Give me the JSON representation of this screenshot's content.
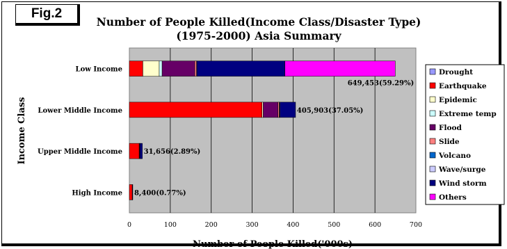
{
  "fig_label": "Fig.2",
  "chart_data": {
    "type": "bar",
    "orientation": "horizontal",
    "stacked": true,
    "title": "Number of People Killed(Income Class/Disaster Type)",
    "subtitle": "(1975-2000) Asia Summary",
    "xlabel": "Number of People Killed('000s)",
    "ylabel": "Income Class",
    "xlim": [
      0,
      700
    ],
    "xticks": [
      0,
      100,
      200,
      300,
      400,
      500,
      600,
      700
    ],
    "grid": "vertical",
    "legend_position": "right",
    "categories": [
      "Low Income",
      "Lower Middle Income",
      "Upper Middle Income",
      "High Income"
    ],
    "series": [
      {
        "name": "Drought",
        "color": "#9999ff",
        "values": [
          0,
          0,
          0,
          0
        ]
      },
      {
        "name": "Earthquake",
        "color": "#ff0000",
        "values": [
          33,
          324,
          24,
          7
        ]
      },
      {
        "name": "Epidemic",
        "color": "#ffffcc",
        "values": [
          40,
          3,
          0,
          0
        ]
      },
      {
        "name": "Extreme temp",
        "color": "#ccffff",
        "values": [
          7,
          0,
          0,
          0
        ]
      },
      {
        "name": "Flood",
        "color": "#660066",
        "values": [
          80,
          36,
          1,
          0
        ]
      },
      {
        "name": "Slide",
        "color": "#ff8080",
        "values": [
          4,
          3,
          1,
          0.5
        ]
      },
      {
        "name": "Volcano",
        "color": "#0066cc",
        "values": [
          0,
          1,
          0,
          0
        ]
      },
      {
        "name": "Wave/surge",
        "color": "#ccccff",
        "values": [
          1,
          1,
          0,
          0
        ]
      },
      {
        "name": "Wind storm",
        "color": "#000080",
        "values": [
          215,
          38,
          5.7,
          0.9
        ]
      },
      {
        "name": "Others",
        "color": "#ff00ff",
        "values": [
          269.5,
          0,
          0,
          0
        ]
      }
    ],
    "data_labels": [
      "649,453(59.29%)",
      "405,903(37.05%)",
      "31,656(2.89%)",
      "8,400(0.77%)"
    ],
    "totals": [
      649.453,
      405.903,
      31.656,
      8.4
    ]
  }
}
